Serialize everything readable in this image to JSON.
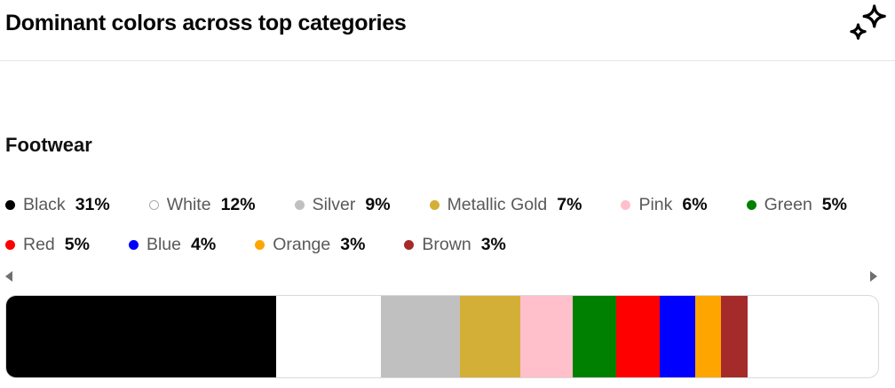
{
  "header": {
    "title": "Dominant colors across top categories"
  },
  "section": {
    "title": "Footwear"
  },
  "scrollbar": {
    "left_arrow": "left",
    "right_arrow": "right"
  },
  "chart_data": {
    "type": "bar",
    "variant": "horizontal-stacked-100-percent",
    "title": "Dominant colors across top categories",
    "category": "Footwear",
    "unit": "%",
    "legend_position": "above-bar",
    "segments": [
      {
        "label": "Black",
        "value": 31,
        "color": "#000000"
      },
      {
        "label": "White",
        "value": 12,
        "color": "#ffffff"
      },
      {
        "label": "Silver",
        "value": 9,
        "color": "#c0c0c0"
      },
      {
        "label": "Metallic Gold",
        "value": 7,
        "color": "#d4af37"
      },
      {
        "label": "Pink",
        "value": 6,
        "color": "#ffc0cb"
      },
      {
        "label": "Green",
        "value": 5,
        "color": "#008000"
      },
      {
        "label": "Red",
        "value": 5,
        "color": "#ff0000"
      },
      {
        "label": "Blue",
        "value": 4,
        "color": "#0000ff"
      },
      {
        "label": "Orange",
        "value": 3,
        "color": "#ffa500"
      },
      {
        "label": "Brown",
        "value": 3,
        "color": "#a52a2a"
      }
    ],
    "labeled_total_percent": 85,
    "unlabeled_remainder_percent": 15,
    "remainder_color": "#ffffff",
    "bar_border_color": "#d9d9d9",
    "legend_label_color": "#595959",
    "legend_value_color": "#0a0a0a"
  }
}
